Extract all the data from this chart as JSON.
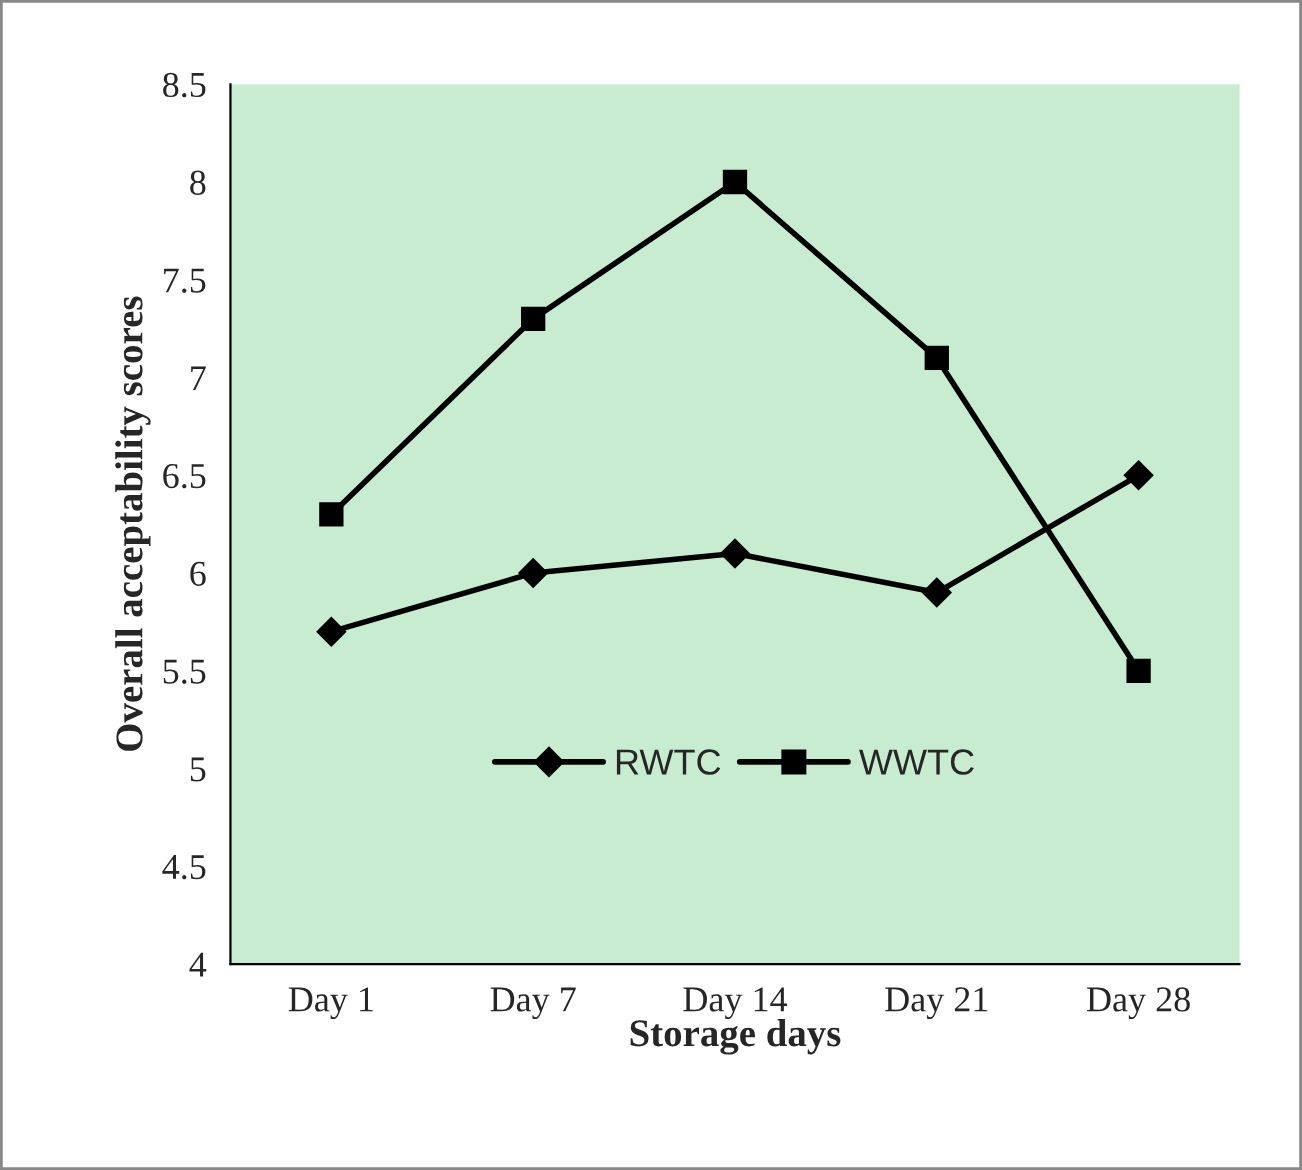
{
  "chart_data": {
    "type": "line",
    "xlabel": "Storage days",
    "ylabel": "Overall acceptability scores",
    "categories": [
      "Day 1",
      "Day 7",
      "Day 14",
      "Day 21",
      "Day 28"
    ],
    "series": [
      {
        "name": "RWTC",
        "color": "#000000",
        "marker": "diamond",
        "values": [
          5.7,
          6.0,
          6.1,
          5.9,
          6.5
        ]
      },
      {
        "name": "WWTC",
        "color": "#000000",
        "marker": "square",
        "values": [
          6.3,
          7.3,
          8.0,
          7.1,
          5.5
        ]
      }
    ],
    "ylim": [
      4,
      8.5
    ],
    "yticks": [
      4,
      4.5,
      5,
      5.5,
      6,
      6.5,
      7,
      7.5,
      8,
      8.5
    ],
    "grid": false,
    "legend": "bottom",
    "line_style": "solid"
  }
}
